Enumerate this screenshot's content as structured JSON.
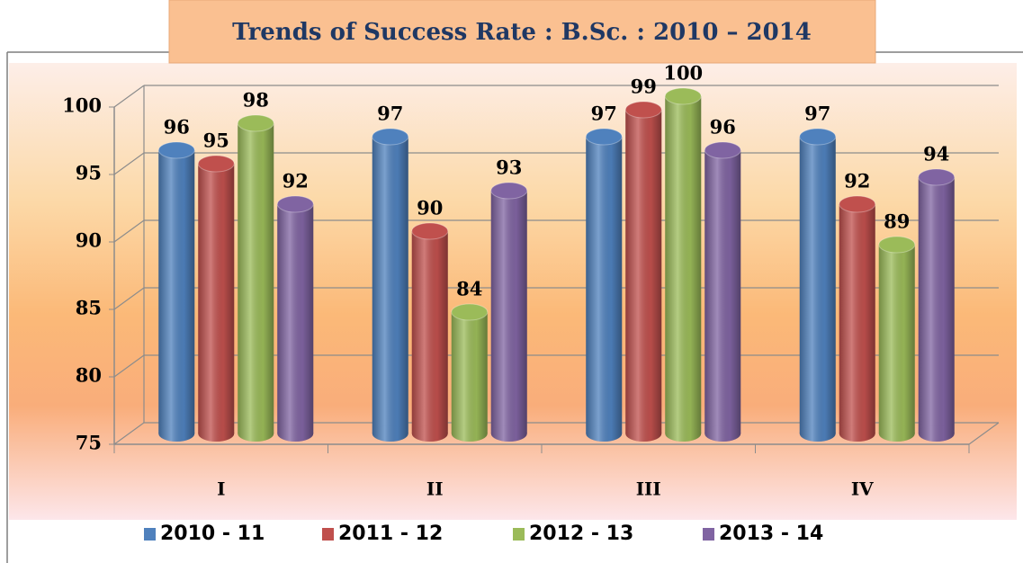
{
  "chart_data": {
    "type": "bar",
    "title": "Trends of Success Rate : B.Sc. : 2010 – 2014",
    "categories": [
      "I",
      "II",
      "III",
      "IV"
    ],
    "series": [
      {
        "name": "2010 - 11",
        "color": "#4f81bd",
        "values": [
          96,
          97,
          97,
          97
        ]
      },
      {
        "name": "2011 - 12",
        "color": "#c0504d",
        "values": [
          95,
          90,
          99,
          92
        ]
      },
      {
        "name": "2012 - 13",
        "color": "#9bbb59",
        "values": [
          98,
          84,
          100,
          89
        ]
      },
      {
        "name": "2013 - 14",
        "color": "#8064a2",
        "values": [
          92,
          93,
          96,
          94
        ]
      }
    ],
    "ylim": [
      75,
      100
    ],
    "yticks": [
      75,
      80,
      85,
      90,
      95,
      100
    ],
    "grid": true,
    "legend": "bottom"
  }
}
